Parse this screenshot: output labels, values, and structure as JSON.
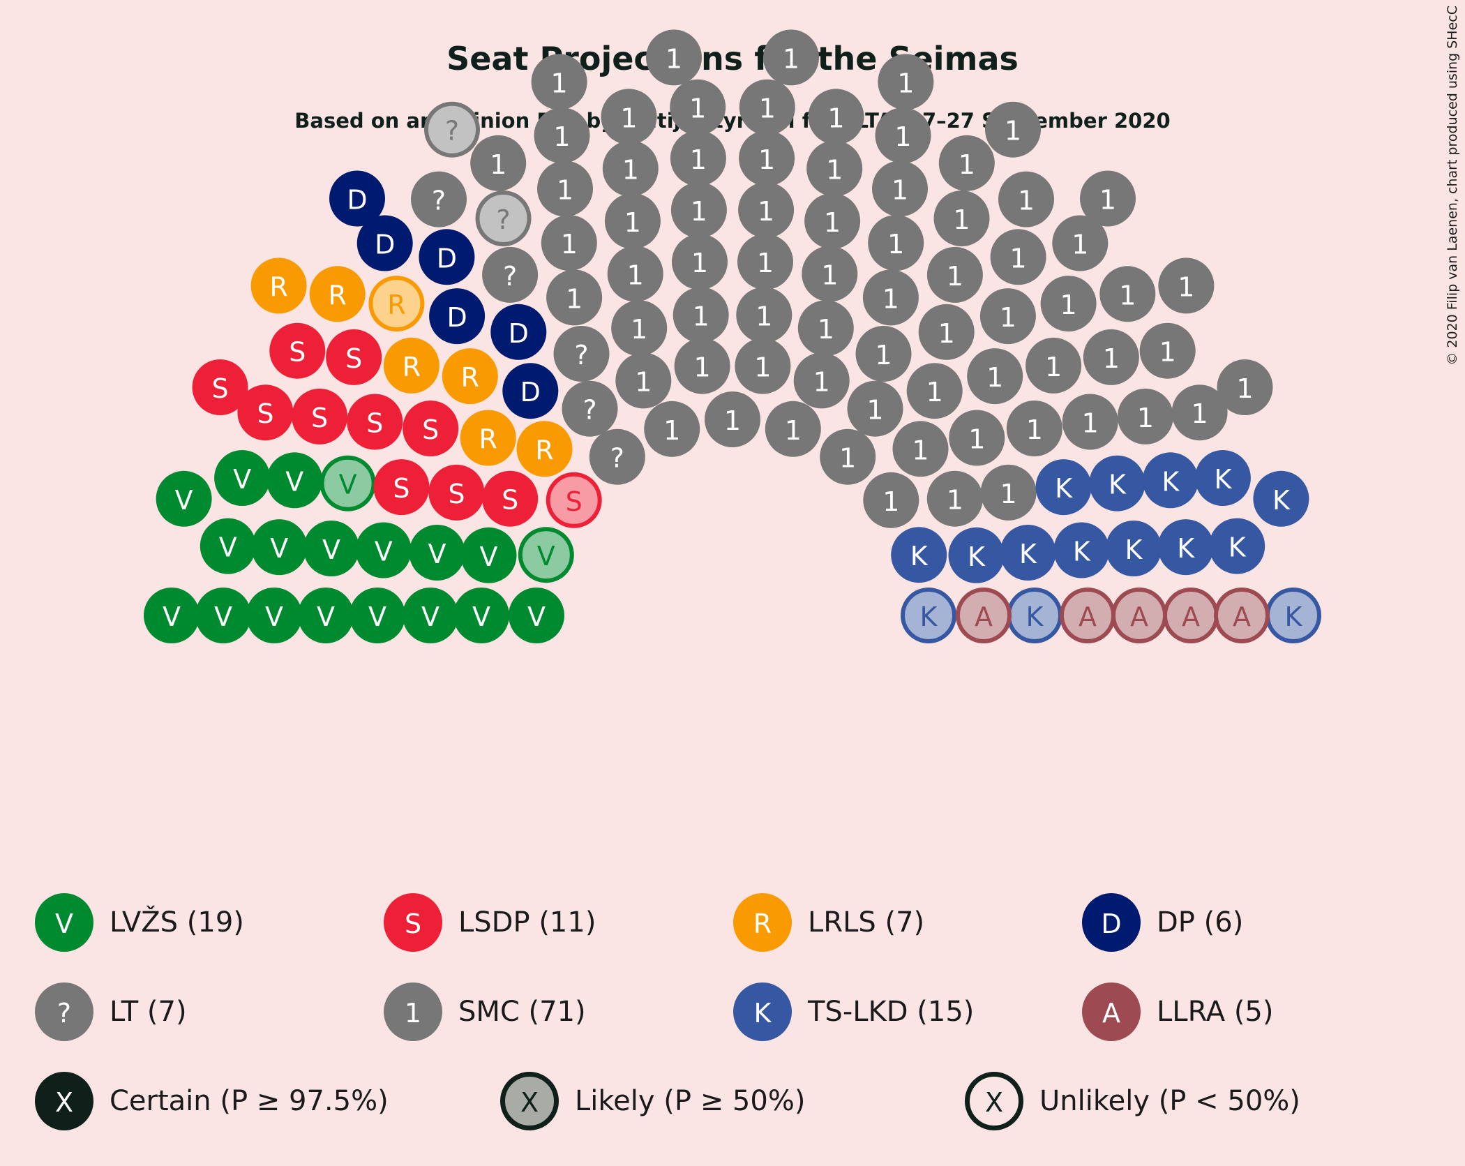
{
  "chart_data": {
    "type": "parliament",
    "title": "Seat Projections for the Seimas",
    "subtitle": "Based on an Opinion Poll by Baltijos tyrimai for ELTA, 17–27 September 2020",
    "copyright": "© 2020 Filip van Laenen, chart produced using SHecC",
    "total_seats": 141,
    "parties": [
      {
        "abbr": "LVŽS",
        "letter": "V",
        "seats": 19,
        "certain": 17,
        "likely": 2,
        "unlikely": 0,
        "color": "#008a2f",
        "legend": "LVŽS (19)"
      },
      {
        "abbr": "LSDP",
        "letter": "S",
        "seats": 11,
        "certain": 10,
        "likely": 1,
        "unlikely": 0,
        "color": "#ee2037",
        "legend": "LSDP (11)"
      },
      {
        "abbr": "LRLS",
        "letter": "R",
        "seats": 7,
        "certain": 6,
        "likely": 1,
        "unlikely": 0,
        "color": "#f89a00",
        "legend": "LRLS (7)"
      },
      {
        "abbr": "DP",
        "letter": "D",
        "seats": 6,
        "certain": 6,
        "likely": 0,
        "unlikely": 0,
        "color": "#001a70",
        "legend": "DP (6)"
      },
      {
        "abbr": "LT",
        "letter": "?",
        "seats": 7,
        "certain": 5,
        "likely": 2,
        "unlikely": 0,
        "color": "#777777",
        "legend": "LT (7)"
      },
      {
        "abbr": "SMC",
        "letter": "1",
        "seats": 71,
        "certain": 71,
        "likely": 0,
        "unlikely": 0,
        "color": "#777777",
        "legend": "SMC (71)"
      },
      {
        "abbr": "TS-LKD",
        "letter": "K",
        "seats": 15,
        "certain": 12,
        "likely": 3,
        "unlikely": 0,
        "color": "#3657a1",
        "legend": "TS-LKD (15)"
      },
      {
        "abbr": "LLRA",
        "letter": "A",
        "seats": 5,
        "certain": 0,
        "likely": 5,
        "unlikely": 0,
        "color": "#9d4a52",
        "legend": "LLRA (5)"
      }
    ],
    "probability_legend": [
      {
        "letter": "X",
        "label": "Certain (P ≥ 97.5%)"
      },
      {
        "letter": "X",
        "label": "Likely (P ≥ 50%)"
      },
      {
        "letter": "X",
        "label": "Unlikely (P < 50%)"
      }
    ]
  }
}
